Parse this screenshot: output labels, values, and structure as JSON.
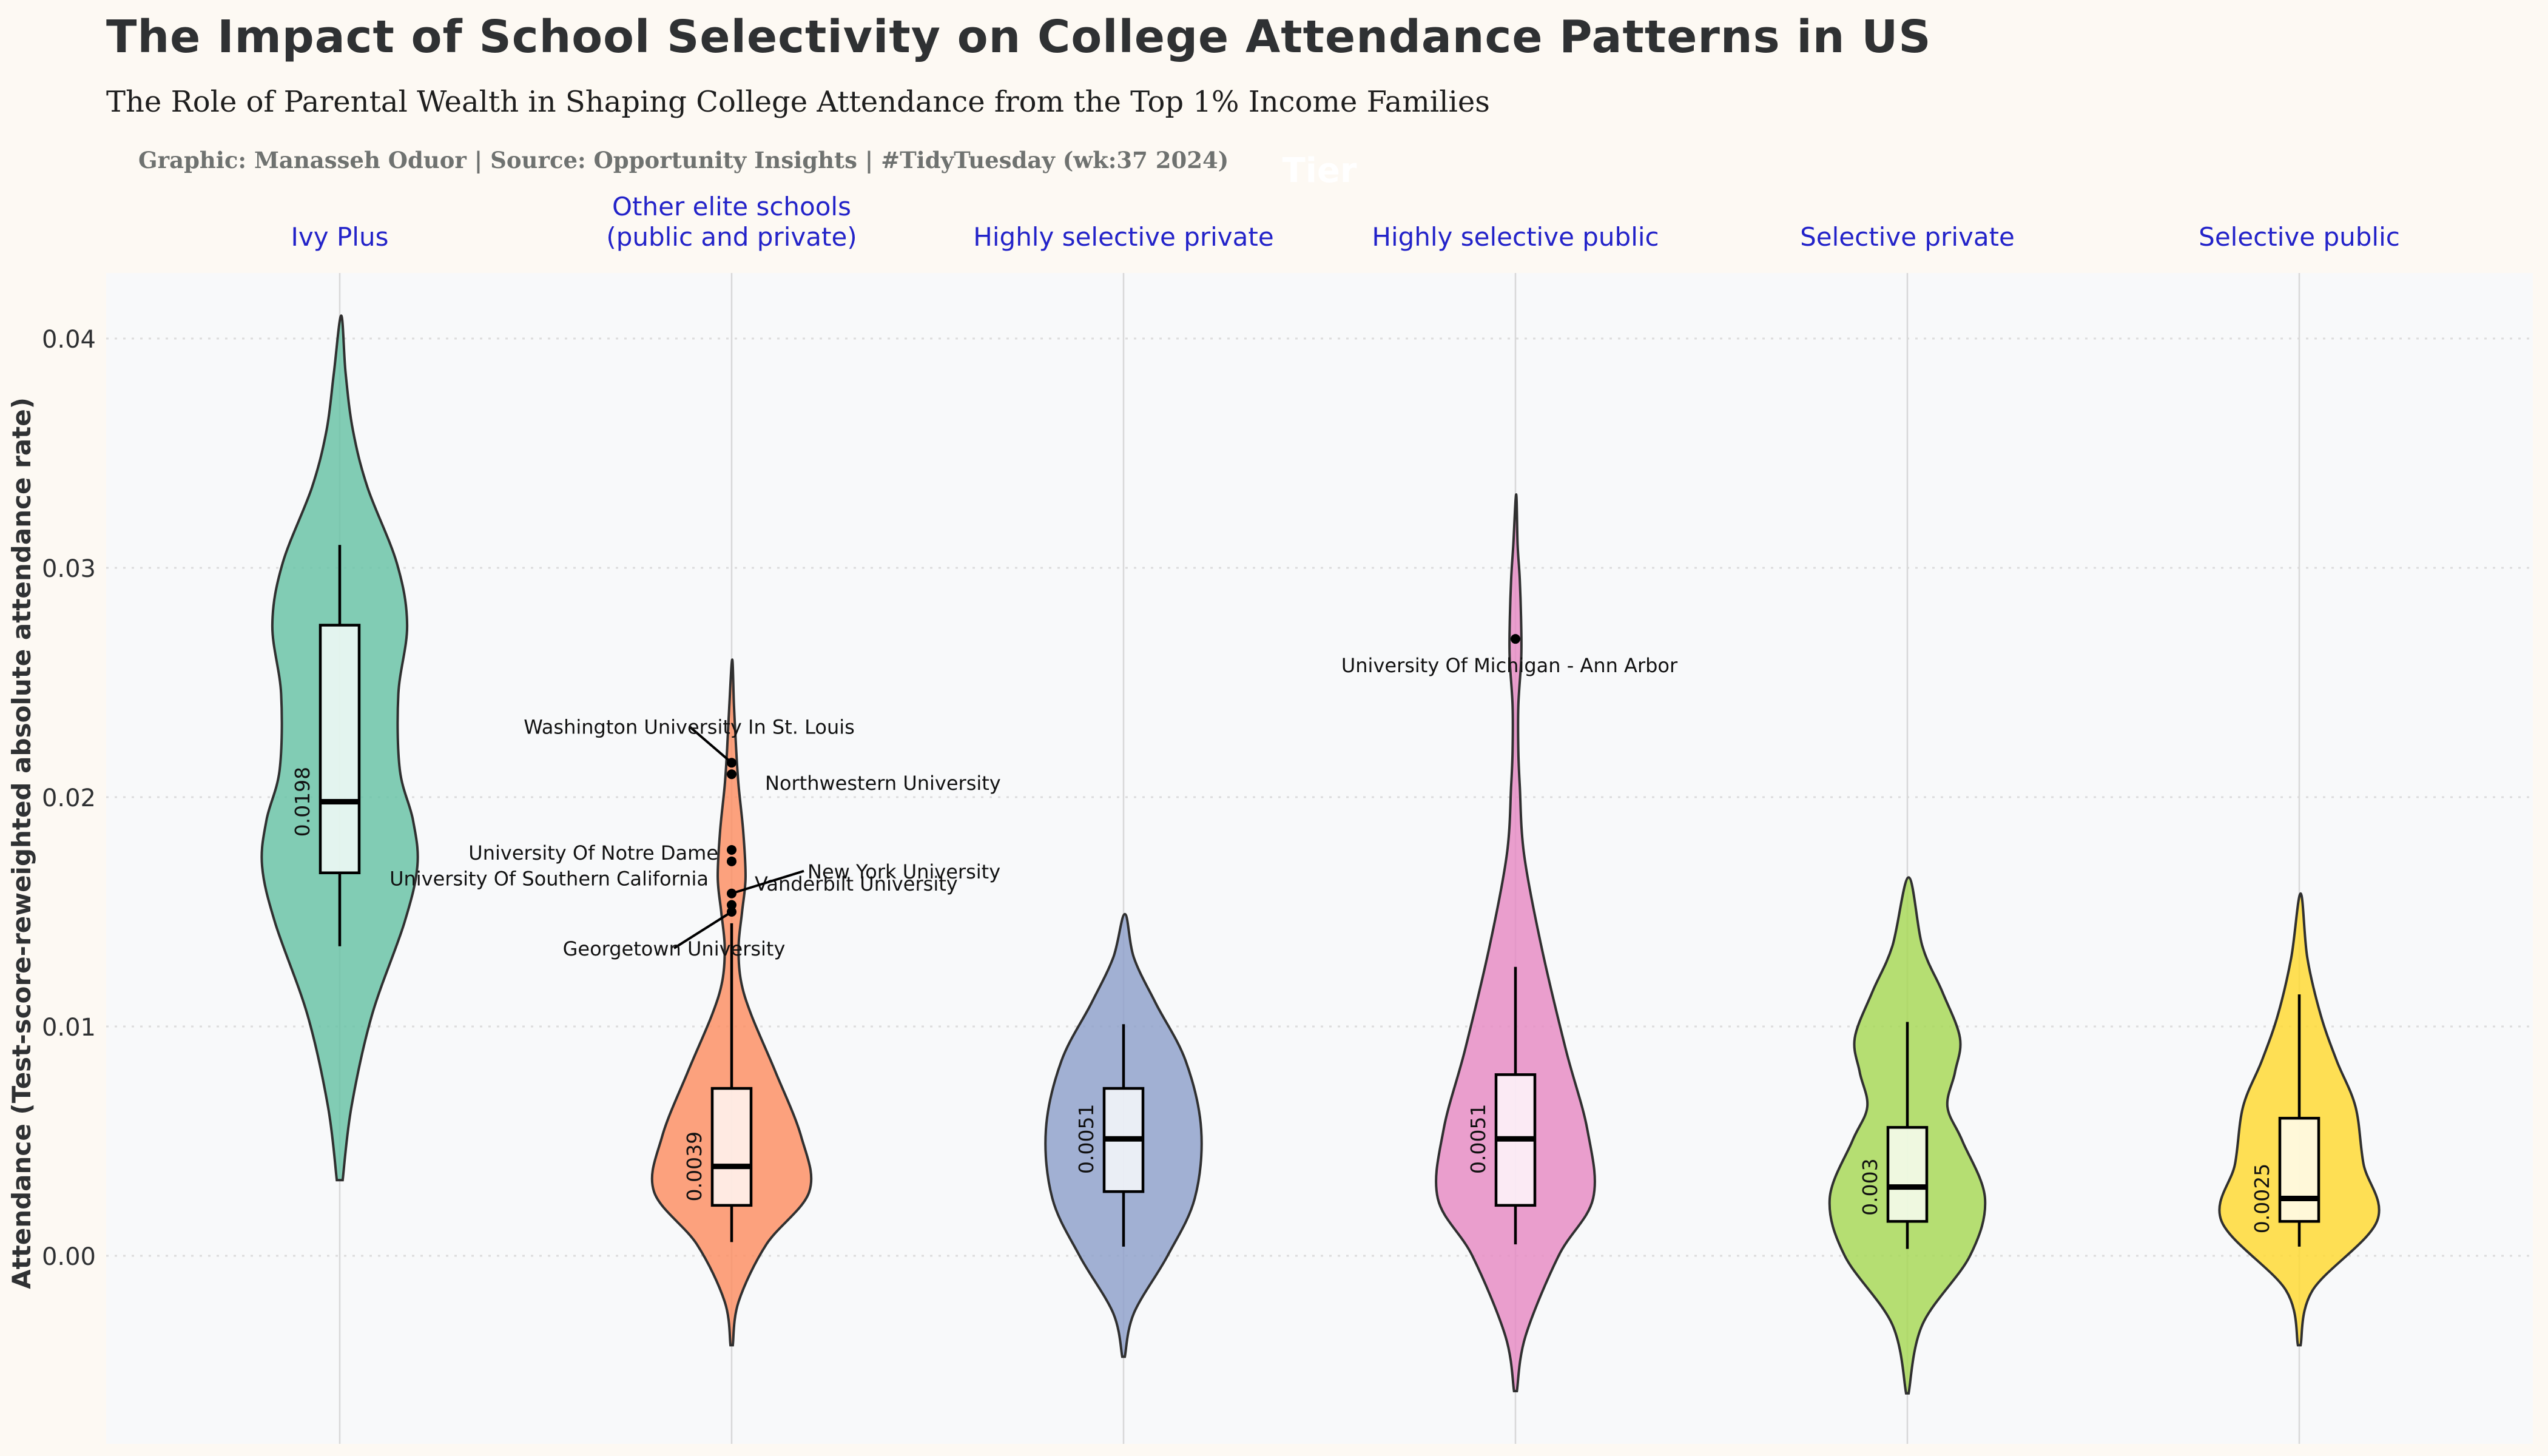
{
  "title": "The Impact of School Selectivity on College Attendance Patterns in US",
  "subtitle": "The Role of Parental Wealth in Shaping College Attendance from the Top 1% Income Families",
  "caption": "Graphic: Manasseh Oduor | Source: Opportunity Insights | #TidyTuesday (wk:37 2024)",
  "chart_data": {
    "type": "violin",
    "facet_label": "Tier",
    "ylabel": "Attendance (Test-score-reweighted absolute attendance rate)",
    "xlabel": "",
    "ylim": [
      -0.008,
      0.043
    ],
    "yticks": [
      0.0,
      0.01,
      0.02,
      0.03,
      0.04
    ],
    "ytick_labels": [
      "0.00",
      "0.01",
      "0.02",
      "0.03",
      "0.04"
    ],
    "grid": true,
    "categories": [
      {
        "label": "Ivy Plus",
        "color": "#66c2a5",
        "median": 0.0198,
        "median_label": "0.0198",
        "q1": 0.0167,
        "q3": 0.0275,
        "whisker_low": 0.0135,
        "whisker_high": 0.031,
        "violin_range": [
          0.0033,
          0.041
        ],
        "density": [
          [
            0.0033,
            2
          ],
          [
            0.0065,
            8
          ],
          [
            0.0105,
            22
          ],
          [
            0.0145,
            44
          ],
          [
            0.017,
            53
          ],
          [
            0.019,
            50
          ],
          [
            0.0212,
            41
          ],
          [
            0.0245,
            40
          ],
          [
            0.0275,
            46
          ],
          [
            0.0302,
            39
          ],
          [
            0.0335,
            19
          ],
          [
            0.036,
            9
          ],
          [
            0.0385,
            4
          ],
          [
            0.041,
            1
          ]
        ],
        "outliers": []
      },
      {
        "label": "Other elite schools\n(public and private)",
        "color": "#fc8d62",
        "median": 0.0039,
        "median_label": "0.0039",
        "q1": 0.0022,
        "q3": 0.0073,
        "whisker_low": 0.0006,
        "whisker_high": 0.0145,
        "violin_range": [
          -0.0039,
          0.026
        ],
        "density": [
          [
            -0.0039,
            1
          ],
          [
            -0.002,
            6
          ],
          [
            0.0005,
            30
          ],
          [
            0.0028,
            67
          ],
          [
            0.0052,
            60
          ],
          [
            0.008,
            38
          ],
          [
            0.0105,
            17
          ],
          [
            0.012,
            8
          ],
          [
            0.0135,
            6
          ],
          [
            0.015,
            9
          ],
          [
            0.0165,
            12
          ],
          [
            0.0185,
            10
          ],
          [
            0.0205,
            6
          ],
          [
            0.022,
            4
          ],
          [
            0.024,
            2
          ],
          [
            0.026,
            0.5
          ]
        ],
        "outliers": [
          {
            "value": 0.0215,
            "label": "Washington University In St. Louis"
          },
          {
            "value": 0.021,
            "label": "Northwestern University"
          },
          {
            "value": 0.0177,
            "label": "University Of Notre Dame"
          },
          {
            "value": 0.0172,
            "label": "Vanderbilt University"
          },
          {
            "value": 0.0158,
            "label": "New York University"
          },
          {
            "value": 0.0153,
            "label": "University Of Southern California"
          },
          {
            "value": 0.015,
            "label": "Georgetown University"
          }
        ]
      },
      {
        "label": "Highly selective private",
        "color": "#8da0cb",
        "median": 0.0051,
        "median_label": "0.0051",
        "q1": 0.0028,
        "q3": 0.0073,
        "whisker_low": 0.0004,
        "whisker_high": 0.0101,
        "violin_range": [
          -0.0044,
          0.0149
        ],
        "density": [
          [
            -0.0044,
            1
          ],
          [
            -0.0025,
            8
          ],
          [
            0.0,
            34
          ],
          [
            0.0025,
            55
          ],
          [
            0.0055,
            60
          ],
          [
            0.0085,
            48
          ],
          [
            0.011,
            25
          ],
          [
            0.013,
            8
          ],
          [
            0.0149,
            1
          ]
        ],
        "outliers": []
      },
      {
        "label": "Highly selective public",
        "color": "#e78ac3",
        "median": 0.0051,
        "median_label": "0.0051",
        "q1": 0.0022,
        "q3": 0.0079,
        "whisker_low": 0.0005,
        "whisker_high": 0.0126,
        "violin_range": [
          -0.0059,
          0.0332
        ],
        "density": [
          [
            -0.0059,
            1
          ],
          [
            -0.0035,
            7
          ],
          [
            0.0,
            30
          ],
          [
            0.0025,
            54
          ],
          [
            0.0055,
            50
          ],
          [
            0.009,
            35
          ],
          [
            0.0135,
            18
          ],
          [
            0.0175,
            6
          ],
          [
            0.0205,
            3
          ],
          [
            0.022,
            2
          ],
          [
            0.024,
            2
          ],
          [
            0.026,
            4
          ],
          [
            0.0275,
            4
          ],
          [
            0.0295,
            3
          ],
          [
            0.031,
            1.5
          ],
          [
            0.0332,
            0.5
          ]
        ],
        "outliers": [
          {
            "value": 0.0269,
            "label": "University Of Michigan - Ann Arbor"
          }
        ]
      },
      {
        "label": "Selective private",
        "color": "#a6d854",
        "median": 0.003,
        "median_label": "0.003",
        "q1": 0.0015,
        "q3": 0.0056,
        "whisker_low": 0.0003,
        "whisker_high": 0.0102,
        "violin_range": [
          -0.006,
          0.0165
        ],
        "density": [
          [
            -0.006,
            1
          ],
          [
            -0.003,
            12
          ],
          [
            0.0,
            50
          ],
          [
            0.0025,
            62
          ],
          [
            0.005,
            44
          ],
          [
            0.0065,
            32
          ],
          [
            0.008,
            38
          ],
          [
            0.0095,
            42
          ],
          [
            0.0115,
            28
          ],
          [
            0.0135,
            12
          ],
          [
            0.0165,
            1
          ]
        ],
        "outliers": []
      },
      {
        "label": "Selective public",
        "color": "#ffd92f",
        "median": 0.0025,
        "median_label": "0.0025",
        "q1": 0.0015,
        "q3": 0.006,
        "whisker_low": 0.0004,
        "whisker_high": 0.0114,
        "violin_range": [
          -0.0039,
          0.0158
        ],
        "density": [
          [
            -0.0039,
            1
          ],
          [
            -0.0015,
            10
          ],
          [
            0.0015,
            58
          ],
          [
            0.004,
            48
          ],
          [
            0.0065,
            42
          ],
          [
            0.0085,
            28
          ],
          [
            0.0105,
            16
          ],
          [
            0.013,
            6
          ],
          [
            0.0158,
            1
          ]
        ],
        "outliers": []
      }
    ]
  }
}
